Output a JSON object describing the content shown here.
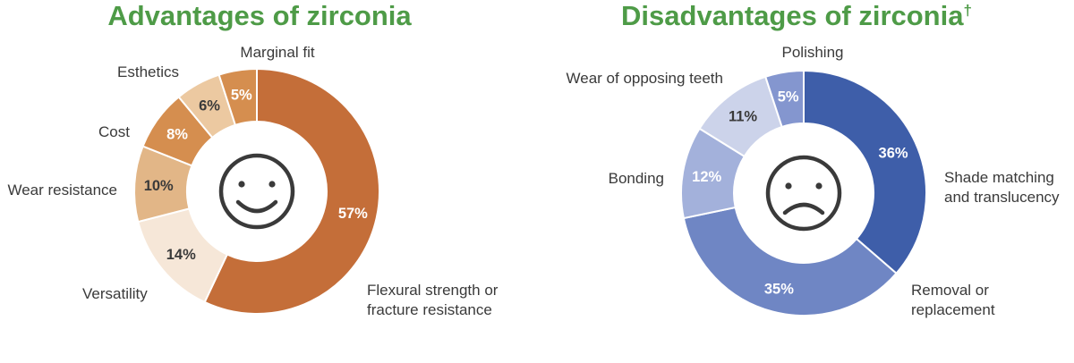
{
  "colors": {
    "title": "#4e9b47",
    "text": "#3a3a3a",
    "face": "#3a3a3a"
  },
  "chart_data": [
    {
      "type": "pie",
      "variant": "donut",
      "title": "Advantages of zirconia",
      "center_icon": "smiley-face-icon",
      "slices": [
        {
          "label": "Flexural strength or fracture resistance",
          "lines": [
            "Flexural strength or",
            "fracture resistance"
          ],
          "value": 57,
          "value_label": "57%",
          "color": "#c46e39",
          "text_color": "#ffffff"
        },
        {
          "label": "Versatility",
          "lines": [
            "Versatility"
          ],
          "value": 14,
          "value_label": "14%",
          "color": "#f6e7d8",
          "text_color": "#3a3a3a"
        },
        {
          "label": "Wear resistance",
          "lines": [
            "Wear resistance"
          ],
          "value": 10,
          "value_label": "10%",
          "color": "#e2b687",
          "text_color": "#3a3a3a"
        },
        {
          "label": "Cost",
          "lines": [
            "Cost"
          ],
          "value": 8,
          "value_label": "8%",
          "color": "#d58e4f",
          "text_color": "#ffffff"
        },
        {
          "label": "Esthetics",
          "lines": [
            "Esthetics"
          ],
          "value": 6,
          "value_label": "6%",
          "color": "#ecc9a1",
          "text_color": "#3a3a3a"
        },
        {
          "label": "Marginal fit",
          "lines": [
            "Marginal fit"
          ],
          "value": 5,
          "value_label": "5%",
          "color": "#d58e4f",
          "text_color": "#ffffff"
        }
      ]
    },
    {
      "type": "pie",
      "variant": "donut",
      "title": "Disadvantages of zirconia",
      "title_mark": "†",
      "center_icon": "sad-face-icon",
      "slices": [
        {
          "label": "Shade matching and translucency",
          "lines": [
            "Shade matching",
            "and translucency"
          ],
          "value": 36,
          "value_label": "36%",
          "color": "#3e5ea9",
          "text_color": "#ffffff"
        },
        {
          "label": "Removal or replacement",
          "lines": [
            "Removal or",
            "replacement"
          ],
          "value": 35,
          "value_label": "35%",
          "color": "#6f86c4",
          "text_color": "#ffffff"
        },
        {
          "label": "Bonding",
          "lines": [
            "Bonding"
          ],
          "value": 12,
          "value_label": "12%",
          "color": "#a3b1db",
          "text_color": "#ffffff"
        },
        {
          "label": "Wear of opposing teeth",
          "lines": [
            "Wear of opposing teeth"
          ],
          "value": 11,
          "value_label": "11%",
          "color": "#ccd3ea",
          "text_color": "#3a3a3a"
        },
        {
          "label": "Polishing",
          "lines": [
            "Polishing"
          ],
          "value": 5,
          "value_label": "5%",
          "color": "#8496cf",
          "text_color": "#ffffff"
        }
      ]
    }
  ]
}
